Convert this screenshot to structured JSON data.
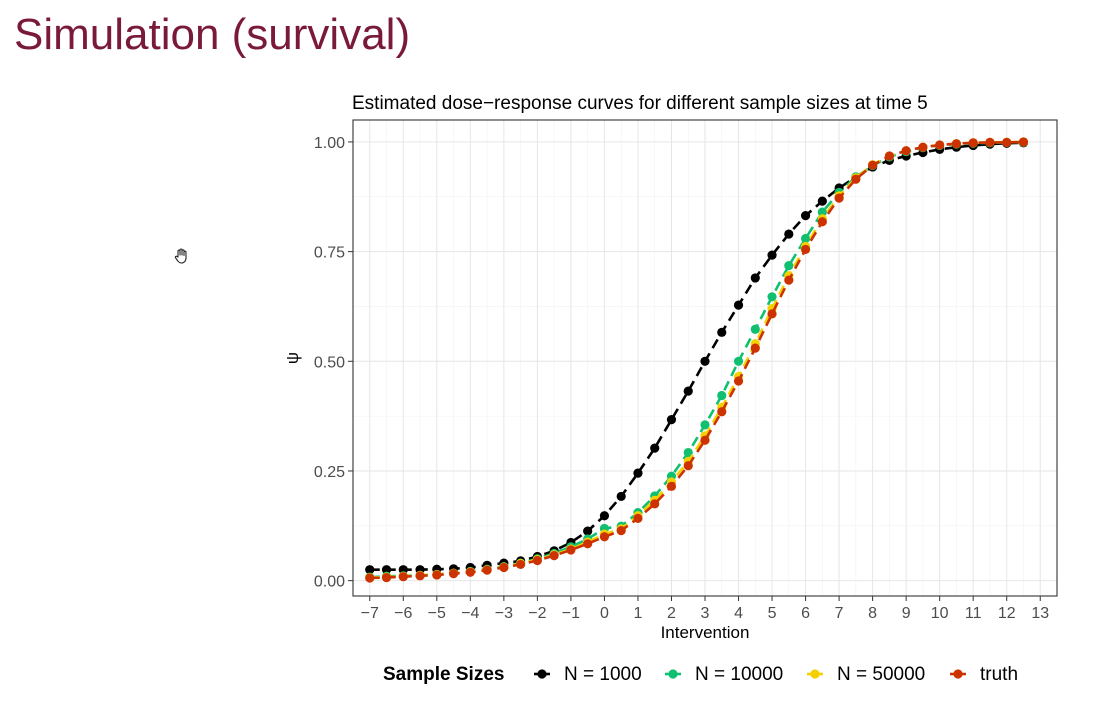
{
  "slide": {
    "title": "Simulation (survival)"
  },
  "icons": {
    "cursor": "hand-cursor-icon"
  },
  "chart_data": {
    "type": "line",
    "title": "Estimated dose−response curves for different sample sizes at time 5",
    "xlabel": "Intervention",
    "ylabel": "ψ",
    "xlim": [
      -7.5,
      13.5
    ],
    "ylim": [
      -0.035,
      1.05
    ],
    "x_ticks": [
      -7,
      -6,
      -5,
      -4,
      -3,
      -2,
      -1,
      0,
      1,
      2,
      3,
      4,
      5,
      6,
      7,
      8,
      9,
      10,
      11,
      12,
      13
    ],
    "x_tick_labels": [
      "−7",
      "−6",
      "−5",
      "−4",
      "−3",
      "−2",
      "−1",
      "0",
      "1",
      "2",
      "3",
      "4",
      "5",
      "6",
      "7",
      "8",
      "9",
      "10",
      "11",
      "12",
      "13"
    ],
    "y_ticks": [
      0,
      0.25,
      0.5,
      0.75,
      1
    ],
    "y_tick_labels": [
      "0.00",
      "0.25",
      "0.50",
      "0.75",
      "1.00"
    ],
    "grid": true,
    "legend": {
      "title": "Sample Sizes",
      "position": "bottom"
    },
    "x": [
      -7,
      -6.5,
      -6,
      -5.5,
      -5,
      -4.5,
      -4,
      -3.5,
      -3,
      -2.5,
      -2,
      -1.5,
      -1,
      -0.5,
      0,
      0.5,
      1,
      1.5,
      2,
      2.5,
      3,
      3.5,
      4,
      4.5,
      5,
      5.5,
      6,
      6.5,
      7,
      7.5,
      8,
      8.5,
      9,
      9.5,
      10,
      10.5,
      11,
      11.5,
      12,
      12.5
    ],
    "series": [
      {
        "name": "N = 1000",
        "color": "#000000",
        "values": [
          0.025,
          0.025,
          0.025,
          0.025,
          0.026,
          0.027,
          0.03,
          0.035,
          0.04,
          0.045,
          0.055,
          0.068,
          0.087,
          0.113,
          0.148,
          0.192,
          0.245,
          0.302,
          0.367,
          0.432,
          0.5,
          0.566,
          0.628,
          0.69,
          0.742,
          0.79,
          0.832,
          0.865,
          0.895,
          0.92,
          0.943,
          0.958,
          0.968,
          0.976,
          0.983,
          0.988,
          0.992,
          0.995,
          0.997,
          0.998
        ]
      },
      {
        "name": "N = 10000",
        "color": "#10c070",
        "values": [
          0.008,
          0.01,
          0.011,
          0.012,
          0.014,
          0.017,
          0.021,
          0.026,
          0.032,
          0.04,
          0.05,
          0.062,
          0.077,
          0.095,
          0.119,
          0.124,
          0.155,
          0.193,
          0.238,
          0.292,
          0.355,
          0.422,
          0.5,
          0.573,
          0.647,
          0.718,
          0.78,
          0.84,
          0.885,
          0.92,
          0.946,
          0.966,
          0.978,
          0.987,
          0.992,
          0.995,
          0.997,
          0.998,
          0.999,
          0.999
        ]
      },
      {
        "name": "N = 50000",
        "color": "#f5d000",
        "values": [
          0.007,
          0.008,
          0.01,
          0.012,
          0.014,
          0.017,
          0.02,
          0.025,
          0.031,
          0.039,
          0.048,
          0.059,
          0.072,
          0.088,
          0.106,
          0.118,
          0.148,
          0.183,
          0.225,
          0.272,
          0.33,
          0.395,
          0.465,
          0.54,
          0.62,
          0.695,
          0.762,
          0.825,
          0.877,
          0.918,
          0.948,
          0.968,
          0.98,
          0.988,
          0.993,
          0.996,
          0.998,
          0.999,
          0.999,
          1.0
        ]
      },
      {
        "name": "truth",
        "color": "#cc3300",
        "values": [
          0.006,
          0.007,
          0.009,
          0.011,
          0.013,
          0.016,
          0.019,
          0.024,
          0.03,
          0.037,
          0.046,
          0.057,
          0.07,
          0.084,
          0.1,
          0.114,
          0.142,
          0.175,
          0.215,
          0.262,
          0.32,
          0.385,
          0.455,
          0.53,
          0.608,
          0.685,
          0.755,
          0.818,
          0.872,
          0.915,
          0.947,
          0.968,
          0.98,
          0.988,
          0.993,
          0.996,
          0.998,
          0.999,
          0.999,
          1.0
        ]
      }
    ]
  }
}
